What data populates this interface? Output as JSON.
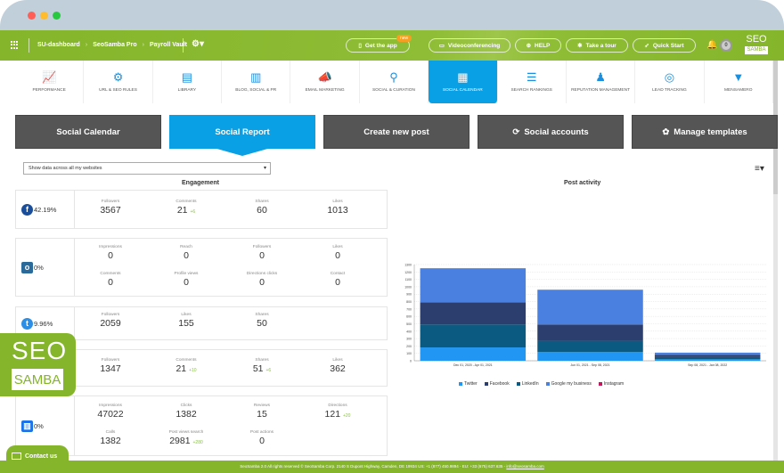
{
  "window": {
    "controls": [
      {
        "name": "close",
        "color": "#ff5f57"
      },
      {
        "name": "minimize",
        "color": "#febc2e"
      },
      {
        "name": "maximize",
        "color": "#28c840"
      }
    ]
  },
  "topbar": {
    "breadcrumbs": [
      "SU-dashboard",
      "SeoSamba Pro",
      "Payroll Vault"
    ],
    "buttons": {
      "get_app": "Get the app",
      "new_badge": "new",
      "videoconferencing": "Videoconferencing",
      "help": "HELP",
      "tour": "Take a tour",
      "quick_start": "Quick Start"
    },
    "notifications_count": "0",
    "logo_top": "SEO",
    "logo_bottom": "SAMBA"
  },
  "modules": [
    {
      "label": "PERFORMANCE",
      "icon": "📈"
    },
    {
      "label": "URL & SEO RULES",
      "icon": "⚙"
    },
    {
      "label": "LIBRARY",
      "icon": "▤"
    },
    {
      "label": "BLOG, SOCIAL & PR",
      "icon": "▥"
    },
    {
      "label": "EMAIL MARKETING",
      "icon": "📣"
    },
    {
      "label": "SOCIAL & CURATION",
      "icon": "⚲"
    },
    {
      "label": "SOCIAL CALENDAR",
      "icon": "▦"
    },
    {
      "label": "SEARCH RANKINGS",
      "icon": "☰"
    },
    {
      "label": "REPUTATION MANAGEMENT",
      "icon": "♟"
    },
    {
      "label": "LEAD TRACKING",
      "icon": "◎"
    },
    {
      "label": "MENSAMERO",
      "icon": "▼"
    }
  ],
  "tabs": [
    "Social Calendar",
    "Social Report",
    "Create new post",
    "Social accounts",
    "Manage templates"
  ],
  "filter": {
    "selected": "Show data across all my websites"
  },
  "sections": {
    "engagement": "Engagement",
    "post_activity": "Post activity"
  },
  "cards": {
    "facebook": {
      "percent": "42.19%",
      "stats": [
        {
          "label": "Followers",
          "value": "3567",
          "delta": ""
        },
        {
          "label": "Comments",
          "value": "21",
          "delta": "+6"
        },
        {
          "label": "Shares",
          "value": "60",
          "delta": ""
        },
        {
          "label": "Likes",
          "value": "1013",
          "delta": ""
        }
      ]
    },
    "instagram": {
      "percent": "0%",
      "stats": [
        {
          "label": "Impressions",
          "value": "0"
        },
        {
          "label": "Reach",
          "value": "0"
        },
        {
          "label": "Followers",
          "value": "0"
        },
        {
          "label": "Likes",
          "value": "0"
        },
        {
          "label": "Comments",
          "value": "0"
        },
        {
          "label": "Profile views",
          "value": "0"
        },
        {
          "label": "Directions clicks",
          "value": "0"
        },
        {
          "label": "Contact",
          "value": "0"
        }
      ]
    },
    "twitter": {
      "percent": "9.96%",
      "stats": [
        {
          "label": "Followers",
          "value": "2059"
        },
        {
          "label": "Likes",
          "value": "155"
        },
        {
          "label": "Shares",
          "value": "50"
        }
      ]
    },
    "linkedin": {
      "stats": [
        {
          "label": "Followers",
          "value": "1347",
          "delta": ""
        },
        {
          "label": "Comments",
          "value": "21",
          "delta": "+10"
        },
        {
          "label": "Shares",
          "value": "51",
          "delta": "+6"
        },
        {
          "label": "Likes",
          "value": "362",
          "delta": ""
        }
      ]
    },
    "gmb": {
      "percent": "0%",
      "stats": [
        {
          "label": "Impressions",
          "value": "47022",
          "delta": ""
        },
        {
          "label": "Clicks",
          "value": "1382",
          "delta": ""
        },
        {
          "label": "Reviews",
          "value": "15",
          "delta": ""
        },
        {
          "label": "Directions",
          "value": "121",
          "delta": "+20"
        },
        {
          "label": "Calls",
          "value": "1382",
          "delta": ""
        },
        {
          "label": "Post views search",
          "value": "2981",
          "delta": "+280"
        },
        {
          "label": "Post actions",
          "value": "0",
          "delta": ""
        }
      ]
    }
  },
  "chart_data": {
    "type": "bar",
    "stacked": true,
    "title": "Post activity",
    "categories": [
      "Dec 01, 2020 - Apr 01, 2021",
      "Jun 01, 2021 - Sep 08, 2021",
      "Sep 08, 2021 - Jan 08, 2022"
    ],
    "series": [
      {
        "name": "Twitter",
        "color": "#2196f3",
        "values": [
          180,
          120,
          20
        ]
      },
      {
        "name": "LinkedIn",
        "color": "#0a5a82",
        "values": [
          310,
          150,
          30
        ]
      },
      {
        "name": "Facebook",
        "color": "#2c3e6e",
        "values": [
          300,
          220,
          30
        ]
      },
      {
        "name": "Google my business",
        "color": "#4a80e0",
        "values": [
          460,
          470,
          30
        ]
      },
      {
        "name": "Instagram",
        "color": "#c2185b",
        "values": [
          0,
          0,
          0
        ]
      }
    ],
    "legend": [
      "Twitter",
      "Facebook",
      "LinkedIn",
      "Google my business",
      "Instagram"
    ],
    "yticks": [
      0,
      100,
      200,
      300,
      400,
      500,
      600,
      700,
      800,
      900,
      1000,
      1100,
      1200,
      1300
    ],
    "ylim": [
      0,
      1300
    ],
    "grid": true,
    "legend_position": "bottom"
  },
  "brand_badge": {
    "top": "SEO",
    "bottom": "SAMBA"
  },
  "contact": {
    "label": "Contact us"
  },
  "footer": {
    "text": "SeoSamba 2.0 All rights reserved © SeoSamba Corp. 2140 S Dupont Highway, Camden, DE 19934 US: +1 (877) 450.9894 - EU: +33 (675) 637.635 - ",
    "email": "info@seosamba.com"
  },
  "colors": {
    "brand_green": "#84b52a",
    "accent_blue": "#0aa0e6",
    "tab_dark": "#555555"
  }
}
